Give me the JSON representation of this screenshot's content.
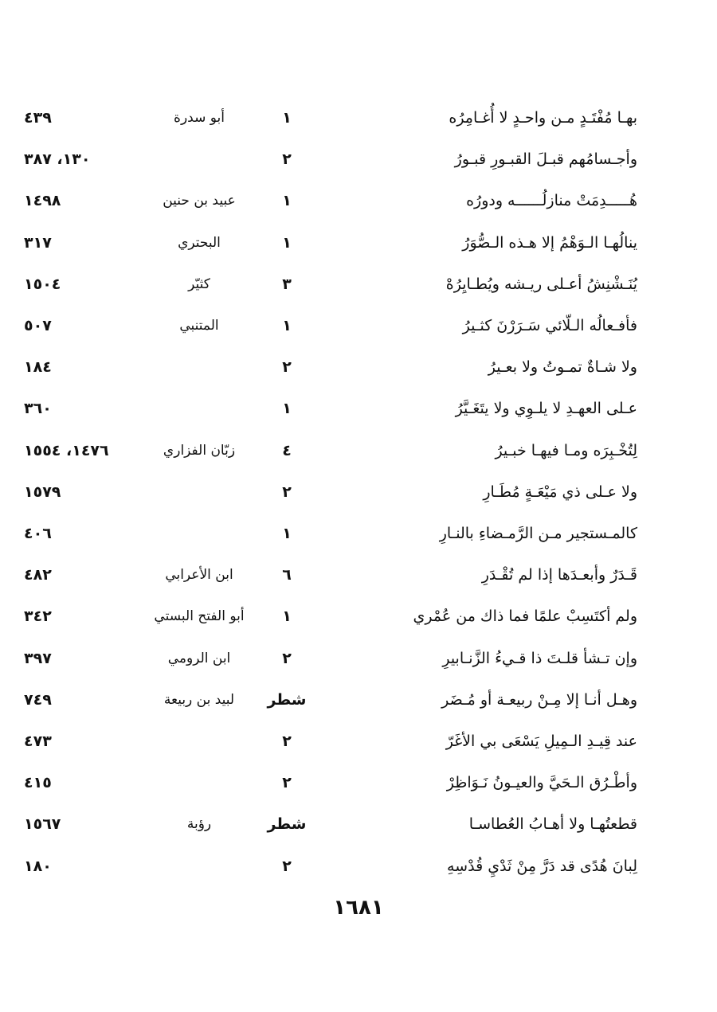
{
  "rows": [
    {
      "verse": "بهـا مُفْتَـدٍ مـن واحـدٍ لا أُغـامِرُه",
      "num": "١",
      "poet": "أبو سدرة",
      "pages": "٤٣٩"
    },
    {
      "verse": "وأجـسامُهم قبـلَ القبـورِ قبـورُ",
      "num": "٢",
      "poet": "",
      "pages": "١٣٠، ٣٨٧"
    },
    {
      "verse": "هُـــــدِمَتْ منازلُــــــه ودورُه",
      "num": "١",
      "poet": "عبيد بن حنين",
      "pages": "١٤٩٨"
    },
    {
      "verse": "ينالُهـا الـوَهْمُ إلا هـذه الـصُّوَرُ",
      "num": "١",
      "poet": "البحتري",
      "pages": "٣١٧"
    },
    {
      "verse": "يُنَـشْنِشُ أعـلى ريـشه ويُطـايِرُهْ",
      "num": "٣",
      "poet": "كثيّر",
      "pages": "١٥٠٤"
    },
    {
      "verse": "فأفـعالُه الـلّائي سَـرَرْنَ كثـيرُ",
      "num": "١",
      "poet": "المتنبي",
      "pages": "٥٠٧"
    },
    {
      "verse": "ولا شـاةٌ تمـوتُ ولا بعـيرُ",
      "num": "٢",
      "poet": "",
      "pages": "١٨٤"
    },
    {
      "verse": "عـلى العهـدِ لا يلـوِي ولا يتَغَـيَّرُ",
      "num": "١",
      "poet": "",
      "pages": "٣٦٠"
    },
    {
      "verse": "لِتُخْـبِرَه ومـا فيهـا خبـيرُ",
      "num": "٤",
      "poet": "زبّان  الفزاري",
      "pages": "١٤٧٦، ١٥٥٤"
    },
    {
      "verse": "ولا عـلى ذي مَيْعَـةٍ مُطَـارِ",
      "num": "٢",
      "poet": "",
      "pages": "١٥٧٩"
    },
    {
      "verse": "كالمـستجير مـن الرَّمـضاءِ بالنـارِ",
      "num": "١",
      "poet": "",
      "pages": "٤٠٦"
    },
    {
      "verse": "قَـدَرٌ وأبعـدَها إذا لم تُقْـدَرِ",
      "num": "٦",
      "poet": "ابن الأعرابي",
      "pages": "٤٨٢"
    },
    {
      "verse": "ولم أكتَسِبْ علمًا فما ذاك من عُمْري",
      "num": "١",
      "poet": "أبو الفتح البستي",
      "pages": "٣٤٢"
    },
    {
      "verse": "وإن تـشأ قلـتَ ذا قـيءُ الزَّنـابيرِ",
      "num": "٢",
      "poet": "ابن الرومي",
      "pages": "٣٩٧"
    },
    {
      "verse": "وهـل أنـا إلا مِـنْ ربيعـة أو مُـضَر",
      "num": "شطر",
      "poet": "لبيد بن ربيعة",
      "pages": "٧٤٩"
    },
    {
      "verse": "عند قِيـدِ الـمِيلِ يَسْعَى بي الأغَرّ",
      "num": "٢",
      "poet": "",
      "pages": "٤٧٣"
    },
    {
      "verse": "وأطْـرُق الـحَيَّ والعيـونُ نَـوَاظِرْ",
      "num": "٢",
      "poet": "",
      "pages": "٤١٥"
    },
    {
      "verse": "قطعتُهـا ولا أهـابُ العُطاسـا",
      "num": "شطر",
      "poet": "رؤبة",
      "pages": "١٥٦٧"
    },
    {
      "verse": "لِبانَ هُدًى قد دَرَّ مِنْ ثَدْيِ قُدْسِهِ",
      "num": "٢",
      "poet": "",
      "pages": "١٨٠"
    }
  ],
  "page_number": "١٦٨١"
}
